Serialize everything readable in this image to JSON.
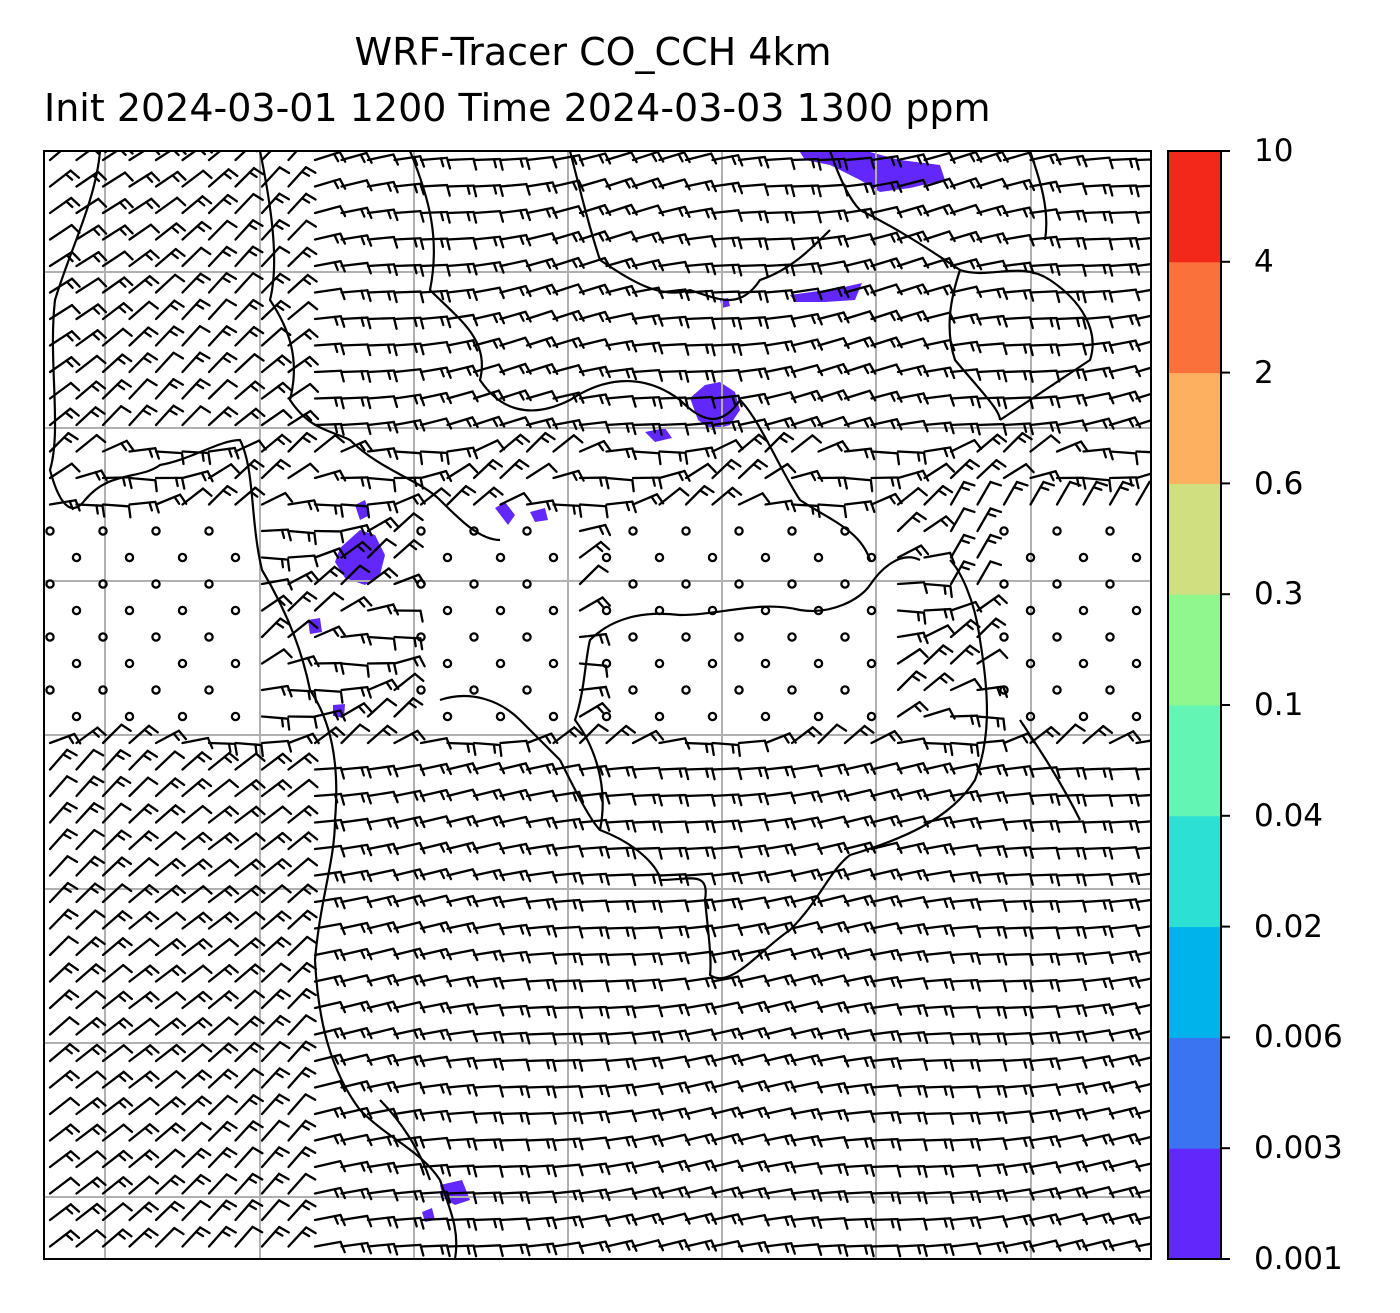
{
  "title": {
    "line1": "WRF-Tracer CO_CCH 4km",
    "line2": "Init 2024-03-01 1200 Time 2024-03-03 1300 ppm"
  },
  "colorbar": {
    "levels": [
      "0.001",
      "0.003",
      "0.006",
      "0.02",
      "0.04",
      "0.1",
      "0.3",
      "0.6",
      "2",
      "4",
      "10"
    ],
    "colors": [
      "#6228fb",
      "#3b74f1",
      "#00b3ea",
      "#2ce0d3",
      "#62f5b4",
      "#90f68e",
      "#d0e081",
      "#fcb060",
      "#fb713b",
      "#f4281a"
    ]
  },
  "map": {
    "gridline_color": "#b0b0b0",
    "coastline_color": "#000000",
    "tracer_color": "#6228fb",
    "wind_barbs": "wind-barb field with calm circles in central band"
  }
}
